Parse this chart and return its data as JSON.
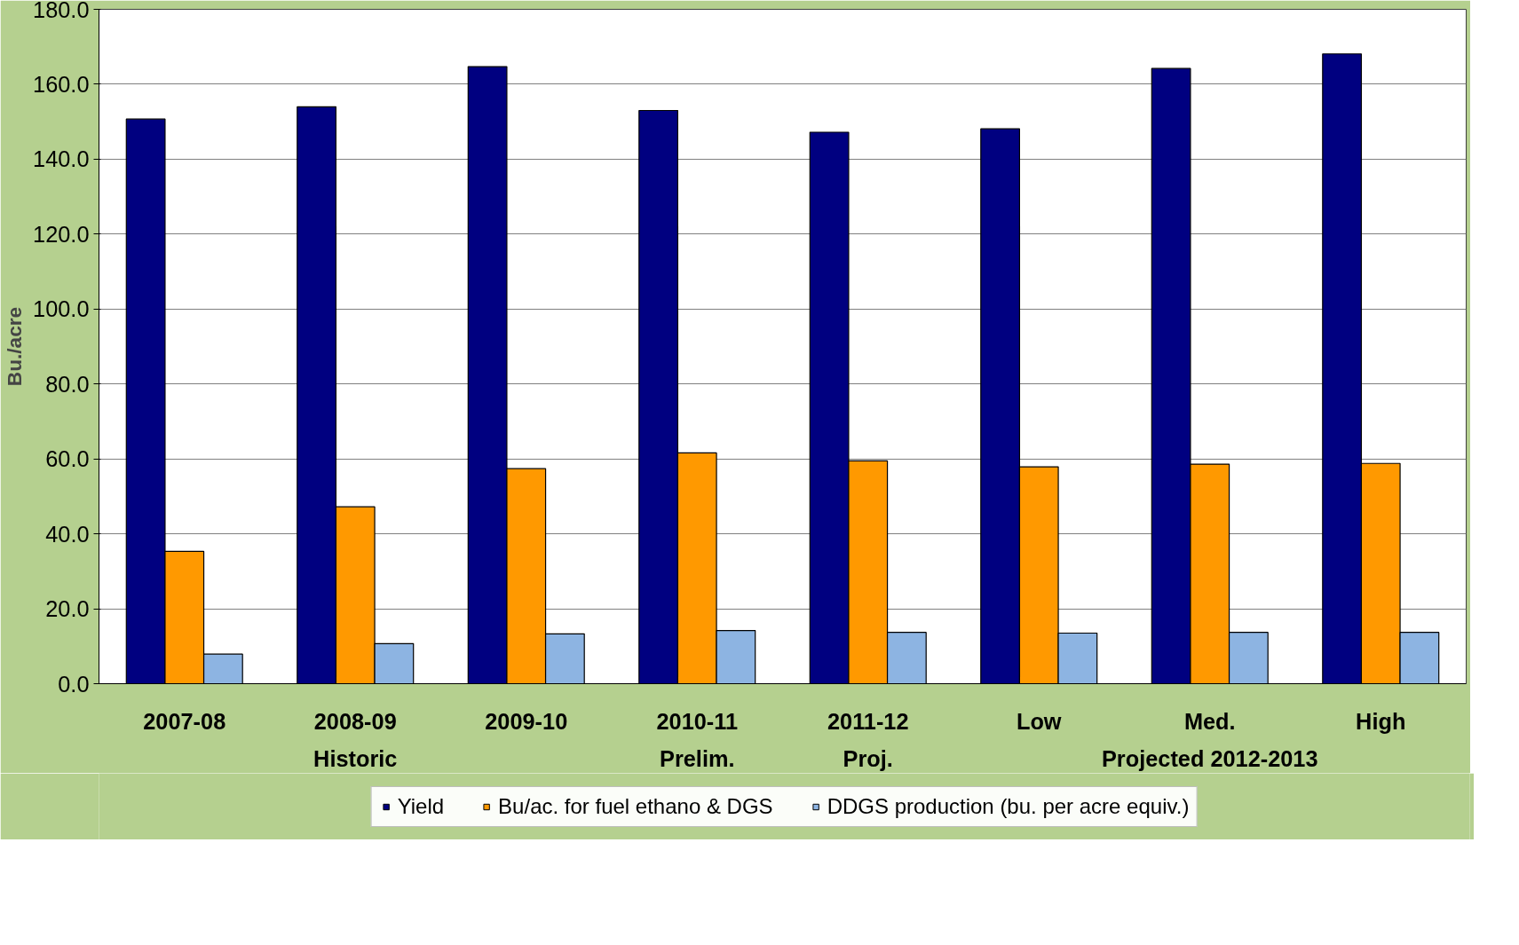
{
  "chart_data": {
    "type": "bar",
    "ylabel": "Bu./acre",
    "categories": [
      "2007-08",
      "2008-09",
      "2009-10",
      "2010-11",
      "2011-12",
      "Low",
      "Med.",
      "High"
    ],
    "series": [
      {
        "name": "Yield",
        "color": "#000080",
        "values": [
          150.7,
          154.0,
          164.7,
          153.0,
          147.2,
          148.1,
          164.2,
          168.1
        ]
      },
      {
        "name": "Bu/ac. for fuel ethano & DGS",
        "color": "#ff9900",
        "values": [
          35.3,
          47.2,
          57.4,
          61.6,
          59.5,
          57.9,
          58.6,
          58.8
        ]
      },
      {
        "name": "DDGS production (bu. per acre equiv.)",
        "color": "#8db4e2",
        "values": [
          7.9,
          10.7,
          13.3,
          14.2,
          13.7,
          13.5,
          13.7,
          13.7
        ]
      }
    ],
    "annotations": [
      "Historic",
      "Prelim.",
      "Proj.",
      "Projected 2012-2013"
    ],
    "ylim": [
      0,
      180
    ],
    "yticks": [
      {
        "value": 0,
        "label": "0.0"
      },
      {
        "value": 20,
        "label": "20.0"
      },
      {
        "value": 40,
        "label": "40.0"
      },
      {
        "value": 60,
        "label": "60.0"
      },
      {
        "value": 80,
        "label": "80.0"
      },
      {
        "value": 100,
        "label": "100.0"
      },
      {
        "value": 120,
        "label": "120.0"
      },
      {
        "value": 140,
        "label": "140.0"
      },
      {
        "value": 160,
        "label": "160.0"
      },
      {
        "value": 180,
        "label": "180.0"
      }
    ],
    "grid": "y",
    "legend": "bottom"
  }
}
